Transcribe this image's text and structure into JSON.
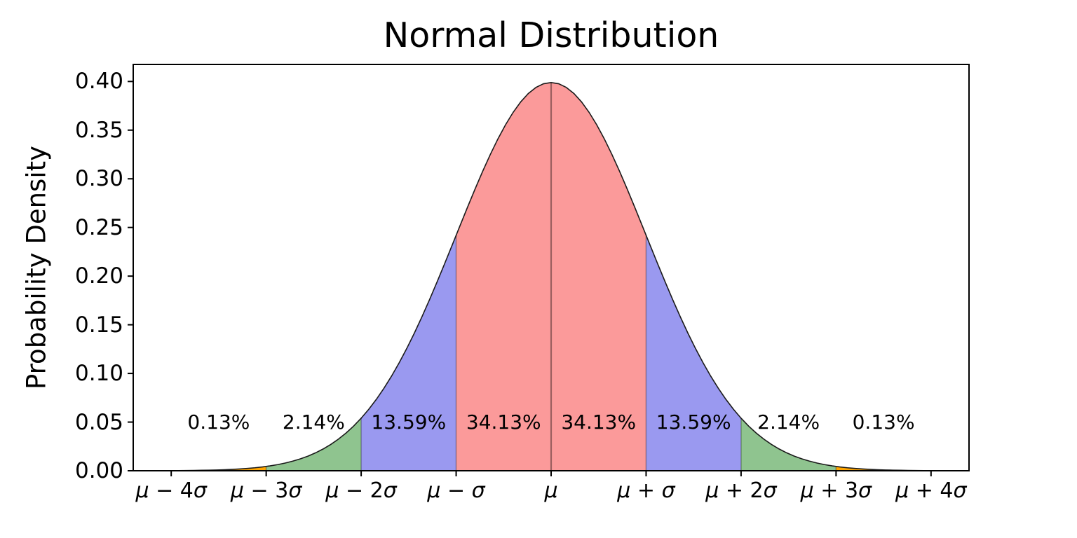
{
  "chart_data": {
    "type": "area",
    "title": "Normal Distribution",
    "xlabel": "",
    "ylabel": "Probability Density",
    "grid": false,
    "legend": "none",
    "xlim": [
      -4.4,
      4.4
    ],
    "ylim": [
      0,
      0.4175
    ],
    "curve": {
      "distribution": "standard-normal-pdf",
      "mean": 0,
      "sd": 1,
      "peak_density": 0.3989,
      "color": "#1a1a1a"
    },
    "x_ticks": [
      {
        "value": -4,
        "label": "μ − 4σ"
      },
      {
        "value": -3,
        "label": "μ − 3σ"
      },
      {
        "value": -2,
        "label": "μ − 2σ"
      },
      {
        "value": -1,
        "label": "μ − σ"
      },
      {
        "value": 0,
        "label": "μ"
      },
      {
        "value": 1,
        "label": "μ + σ"
      },
      {
        "value": 2,
        "label": "μ + 2σ"
      },
      {
        "value": 3,
        "label": "μ + 3σ"
      },
      {
        "value": 4,
        "label": "μ + 4σ"
      }
    ],
    "y_ticks": [
      {
        "value": 0.0,
        "label": "0.00"
      },
      {
        "value": 0.05,
        "label": "0.05"
      },
      {
        "value": 0.1,
        "label": "0.10"
      },
      {
        "value": 0.15,
        "label": "0.15"
      },
      {
        "value": 0.2,
        "label": "0.20"
      },
      {
        "value": 0.25,
        "label": "0.25"
      },
      {
        "value": 0.3,
        "label": "0.30"
      },
      {
        "value": 0.35,
        "label": "0.35"
      },
      {
        "value": 0.4,
        "label": "0.40"
      }
    ],
    "annotation_y": 0.05,
    "regions": [
      {
        "name": "tail-left-3to4sigma",
        "from": -4,
        "to": -3,
        "percent": 0.13,
        "percent_label": "0.13%",
        "color": "#ffa500"
      },
      {
        "name": "band-left-2to3sigma",
        "from": -3,
        "to": -2,
        "percent": 2.14,
        "percent_label": "2.14%",
        "color": "#8fc48f"
      },
      {
        "name": "band-left-1to2sigma",
        "from": -2,
        "to": -1,
        "percent": 13.59,
        "percent_label": "13.59%",
        "color": "#9a99f0"
      },
      {
        "name": "band-left-0to1sigma",
        "from": -1,
        "to": 0,
        "percent": 34.13,
        "percent_label": "34.13%",
        "color": "#fb9a9a"
      },
      {
        "name": "band-right-0to1sigma",
        "from": 0,
        "to": 1,
        "percent": 34.13,
        "percent_label": "34.13%",
        "color": "#fb9a9a"
      },
      {
        "name": "band-right-1to2sigma",
        "from": 1,
        "to": 2,
        "percent": 13.59,
        "percent_label": "13.59%",
        "color": "#9a99f0"
      },
      {
        "name": "band-right-2to3sigma",
        "from": 2,
        "to": 3,
        "percent": 2.14,
        "percent_label": "2.14%",
        "color": "#8fc48f"
      },
      {
        "name": "tail-right-3to4sigma",
        "from": 3,
        "to": 4,
        "percent": 0.13,
        "percent_label": "0.13%",
        "color": "#ffa500"
      }
    ],
    "mean_line_color": "rgba(0,0,0,0.38)",
    "boundary_line_color": "rgba(0,0,0,0.30)",
    "spine_color": "#000000",
    "background_color": "#ffffff"
  }
}
